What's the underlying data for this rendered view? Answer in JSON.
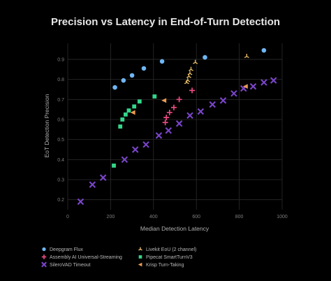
{
  "chart_data": {
    "type": "scatter",
    "title": "Precision vs Latency in End-of-Turn Detection",
    "xlabel": "Median Detection Latency",
    "ylabel": "EoT Detection Precision",
    "xlim": [
      0,
      1000
    ],
    "ylim": [
      0.15,
      0.98
    ],
    "x_ticks": [
      0,
      200,
      400,
      600,
      800,
      1000
    ],
    "y_ticks": [
      0.2,
      0.3,
      0.4,
      0.5,
      0.6,
      0.7,
      0.8,
      0.9
    ],
    "grid": true,
    "legend_position": "bottom",
    "series": [
      {
        "name": "Deepgram Flux",
        "marker": "circle",
        "color": "#6fb6f5",
        "points": [
          [
            220,
            0.76
          ],
          [
            260,
            0.795
          ],
          [
            300,
            0.82
          ],
          [
            355,
            0.855
          ],
          [
            440,
            0.89
          ],
          [
            640,
            0.91
          ],
          [
            915,
            0.945
          ]
        ]
      },
      {
        "name": "Assembly AI Universal-Streaming",
        "marker": "plus",
        "color": "#e94b83",
        "points": [
          [
            455,
            0.585
          ],
          [
            460,
            0.61
          ],
          [
            475,
            0.635
          ],
          [
            495,
            0.66
          ],
          [
            520,
            0.7
          ],
          [
            580,
            0.745
          ]
        ]
      },
      {
        "name": "SileroVAD Timeout",
        "marker": "x",
        "color": "#7a45c9",
        "points": [
          [
            60,
            0.19
          ],
          [
            115,
            0.275
          ],
          [
            165,
            0.31
          ],
          [
            265,
            0.4
          ],
          [
            315,
            0.45
          ],
          [
            365,
            0.475
          ],
          [
            425,
            0.52
          ],
          [
            470,
            0.545
          ],
          [
            520,
            0.58
          ],
          [
            570,
            0.62
          ],
          [
            620,
            0.64
          ],
          [
            675,
            0.675
          ],
          [
            725,
            0.695
          ],
          [
            775,
            0.73
          ],
          [
            820,
            0.755
          ],
          [
            865,
            0.765
          ],
          [
            915,
            0.785
          ],
          [
            960,
            0.795
          ]
        ]
      },
      {
        "name": "Livekit EoU (2 channel)",
        "marker": "tri",
        "color": "#f0c36a",
        "points": [
          [
            555,
            0.785
          ],
          [
            560,
            0.795
          ],
          [
            565,
            0.815
          ],
          [
            570,
            0.83
          ],
          [
            575,
            0.85
          ],
          [
            595,
            0.885
          ],
          [
            835,
            0.915
          ]
        ]
      },
      {
        "name": "Pipecat SmartTurnV3",
        "marker": "square",
        "color": "#33d68a",
        "points": [
          [
            215,
            0.37
          ],
          [
            245,
            0.565
          ],
          [
            255,
            0.6
          ],
          [
            270,
            0.625
          ],
          [
            285,
            0.645
          ],
          [
            310,
            0.665
          ],
          [
            335,
            0.69
          ],
          [
            405,
            0.715
          ]
        ]
      },
      {
        "name": "Krisp Turn-Taking",
        "marker": "triangle-left",
        "color": "#ec9b50",
        "points": [
          [
            305,
            0.635
          ],
          [
            450,
            0.695
          ],
          [
            830,
            0.765
          ]
        ]
      }
    ]
  }
}
